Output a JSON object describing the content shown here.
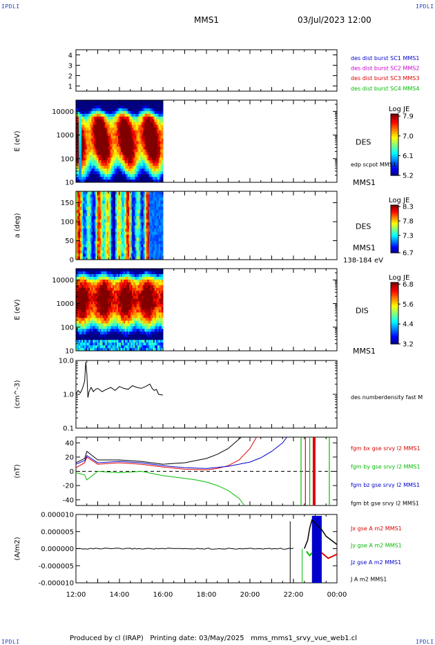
{
  "header": {
    "corner_left_top": "IPDLI",
    "corner_right_top": "IPDLI",
    "corner_left_bottom": "IPDLI",
    "corner_right_bottom": "IPDLI",
    "title": "MMS1",
    "datetime": "03/Jul/2023 12:00"
  },
  "footer": {
    "text": "Produced by cl (IRAP)   Printing date: 03/May/2025   mms_mms1_srvy_vue_web1.cl"
  },
  "colors": {
    "mms1": "#0000cc",
    "mms2": "#cc00cc",
    "mms3": "#dd0000",
    "mms4": "#00bb00",
    "bx": "#dd0000",
    "by": "#00bb00",
    "bz": "#0000cc",
    "bt": "#000000"
  },
  "chart_data": [
    {
      "type": "table",
      "name": "burst-availability",
      "yticks": [
        "1",
        "2",
        "3",
        "4"
      ],
      "ylim": [
        0.5,
        4.5
      ],
      "legend": [
        {
          "label": "des dist burst SC1 MMS1",
          "color": "#0000cc"
        },
        {
          "label": "des dist burst SC2 MMS2",
          "color": "#cc00cc"
        },
        {
          "label": "des dist burst SC3 MMS3",
          "color": "#dd0000"
        },
        {
          "label": "des dist burst SC4 MMS4",
          "color": "#00bb00"
        }
      ]
    },
    {
      "type": "heatmap",
      "name": "des-energy-spectrogram",
      "ylabel": "E (eV)",
      "ylog": true,
      "ylim": [
        10,
        30000
      ],
      "yticks": [
        10,
        100,
        1000,
        10000
      ],
      "ytick_labels": [
        "10",
        "100",
        "1000",
        "10000"
      ],
      "data_end_hour": 16.0,
      "label_right": "DES",
      "label_right2": "edp scpot MMS1",
      "label_right3": "MMS1",
      "colorbar": {
        "title": "Log JE",
        "min": 5.2,
        "max": 8.0,
        "ticks": [
          "7.9",
          "7.0",
          "6.1",
          "5.2"
        ]
      }
    },
    {
      "type": "heatmap",
      "name": "des-pitch-angle",
      "ylabel": "a (deg)",
      "ylim": [
        0,
        180
      ],
      "yticks": [
        0,
        50,
        100,
        150
      ],
      "ytick_labels": [
        "0",
        "50",
        "100",
        "150"
      ],
      "data_end_hour": 16.0,
      "label_right": "DES",
      "label_right2": "MMS1",
      "label_right3": "138-184 eV",
      "colorbar": {
        "title": "Log JE",
        "min": 6.7,
        "max": 8.35,
        "ticks": [
          "8.3",
          "7.8",
          "7.3",
          "6.7"
        ]
      }
    },
    {
      "type": "heatmap",
      "name": "dis-energy-spectrogram",
      "ylabel": "E (eV)",
      "ylog": true,
      "ylim": [
        10,
        30000
      ],
      "yticks": [
        10,
        100,
        1000,
        10000
      ],
      "ytick_labels": [
        "10",
        "100",
        "1000",
        "10000"
      ],
      "data_end_hour": 16.0,
      "label_right": "DIS",
      "label_right2": "MMS1",
      "colorbar": {
        "title": "Log JE",
        "min": 3.2,
        "max": 6.9,
        "ticks": [
          "6.8",
          "5.6",
          "4.4",
          "3.2"
        ]
      }
    },
    {
      "type": "line",
      "name": "des-number-density",
      "ylabel": "(cm^-3)",
      "ylog": true,
      "ylim": [
        0.1,
        10
      ],
      "yticks": [
        0.1,
        1,
        10
      ],
      "ytick_labels": [
        "0.1",
        "1.0",
        "10.0"
      ],
      "series": [
        {
          "name": "des numberdensity fast M",
          "color": "#000000",
          "x": [
            12.0,
            12.1,
            12.2,
            12.3,
            12.4,
            12.45,
            12.5,
            12.55,
            12.6,
            12.7,
            12.8,
            12.9,
            13.0,
            13.2,
            13.4,
            13.6,
            13.8,
            14.0,
            14.2,
            14.4,
            14.6,
            14.8,
            15.0,
            15.2,
            15.4,
            15.5,
            15.6,
            15.7,
            15.8,
            16.0
          ],
          "y": [
            1.0,
            1.3,
            1.1,
            1.5,
            2.5,
            9.0,
            4.0,
            0.8,
            1.2,
            1.6,
            1.2,
            1.4,
            1.5,
            1.2,
            1.4,
            1.6,
            1.3,
            1.7,
            1.5,
            1.4,
            1.8,
            1.6,
            1.5,
            1.7,
            2.0,
            1.5,
            1.3,
            1.4,
            1.0,
            0.95
          ]
        }
      ]
    },
    {
      "type": "line",
      "name": "fgm-magnetic-field",
      "ylabel": "(nT)",
      "ylim": [
        -48,
        48
      ],
      "yticks": [
        -40,
        -20,
        0,
        20,
        40
      ],
      "ytick_labels": [
        "-40",
        "-20",
        "0",
        "20",
        "40"
      ],
      "series": [
        {
          "name": "fgm bx gse srvy l2 MMS1",
          "color": "#dd0000",
          "x": [
            12.0,
            12.4,
            12.5,
            13.0,
            14.0,
            15.0,
            16.0,
            17.0,
            18.0,
            18.5,
            19.0,
            19.5,
            20.0,
            20.3
          ],
          "y": [
            5,
            12,
            20,
            10,
            12,
            10,
            6,
            3,
            2,
            4,
            8,
            16,
            32,
            48
          ]
        },
        {
          "name": "fgm by gse srvy l2 MMS1",
          "color": "#00bb00",
          "x": [
            12.0,
            12.4,
            12.5,
            13.0,
            14.0,
            15.0,
            16.0,
            17.0,
            17.5,
            18.0,
            18.5,
            19.0,
            19.5,
            19.75
          ],
          "y": [
            -2,
            -5,
            -12,
            0,
            -2,
            0,
            -6,
            -10,
            -12,
            -15,
            -20,
            -27,
            -38,
            -48
          ]
        },
        {
          "name": "fgm bz gse srvy l2 MMS1",
          "color": "#0000cc",
          "x": [
            12.0,
            12.4,
            12.5,
            13.0,
            14.0,
            15.0,
            16.0,
            17.0,
            18.0,
            19.0,
            20.0,
            20.5,
            21.0,
            21.5,
            21.7
          ],
          "y": [
            10,
            15,
            22,
            12,
            14,
            12,
            8,
            5,
            4,
            7,
            13,
            19,
            28,
            40,
            48
          ]
        },
        {
          "name": "fgm bt gse srvy l2 MMS1",
          "color": "#000000",
          "x": [
            12.0,
            12.4,
            12.5,
            13.0,
            14.0,
            15.0,
            16.0,
            17.0,
            18.0,
            18.5,
            19.0,
            19.3,
            19.6
          ],
          "y": [
            12,
            18,
            28,
            16,
            16,
            14,
            10,
            12,
            18,
            24,
            32,
            40,
            48
          ]
        }
      ],
      "spikes": [
        {
          "x": 22.35,
          "color": "#00bb00"
        },
        {
          "x": 22.55,
          "color": "#dd0000"
        },
        {
          "x": 22.75,
          "color": "#00bb00"
        },
        {
          "x": 22.95,
          "color": "#dd0000"
        },
        {
          "x": 23.65,
          "color": "#00bb00"
        }
      ],
      "zero_line": true
    },
    {
      "type": "line",
      "name": "current-density",
      "ylabel": "(A/m2)",
      "ylim": [
        -1e-05,
        1e-05
      ],
      "yticks": [
        -1e-05,
        -5e-06,
        0,
        5e-06,
        1e-05
      ],
      "ytick_labels": [
        "-0.000010",
        "-0.000005",
        "0.000000",
        "0.000005",
        "0.000010"
      ],
      "series": [
        {
          "name": "Jx gse A m2 MMS1",
          "color": "#dd0000"
        },
        {
          "name": "Jy gse A m2 MMS1",
          "color": "#00bb00"
        },
        {
          "name": "Jz gse A m2 MMS1",
          "color": "#0000cc"
        },
        {
          "name": "J A m2 MMS1",
          "color": "#000000"
        }
      ]
    }
  ],
  "time_axis": {
    "xlim": [
      12,
      24
    ],
    "ticks": [
      12,
      14,
      16,
      18,
      20,
      22,
      24
    ],
    "tick_labels": [
      "12:00",
      "14:00",
      "16:00",
      "18:00",
      "20:00",
      "22:00",
      "00:00"
    ]
  }
}
